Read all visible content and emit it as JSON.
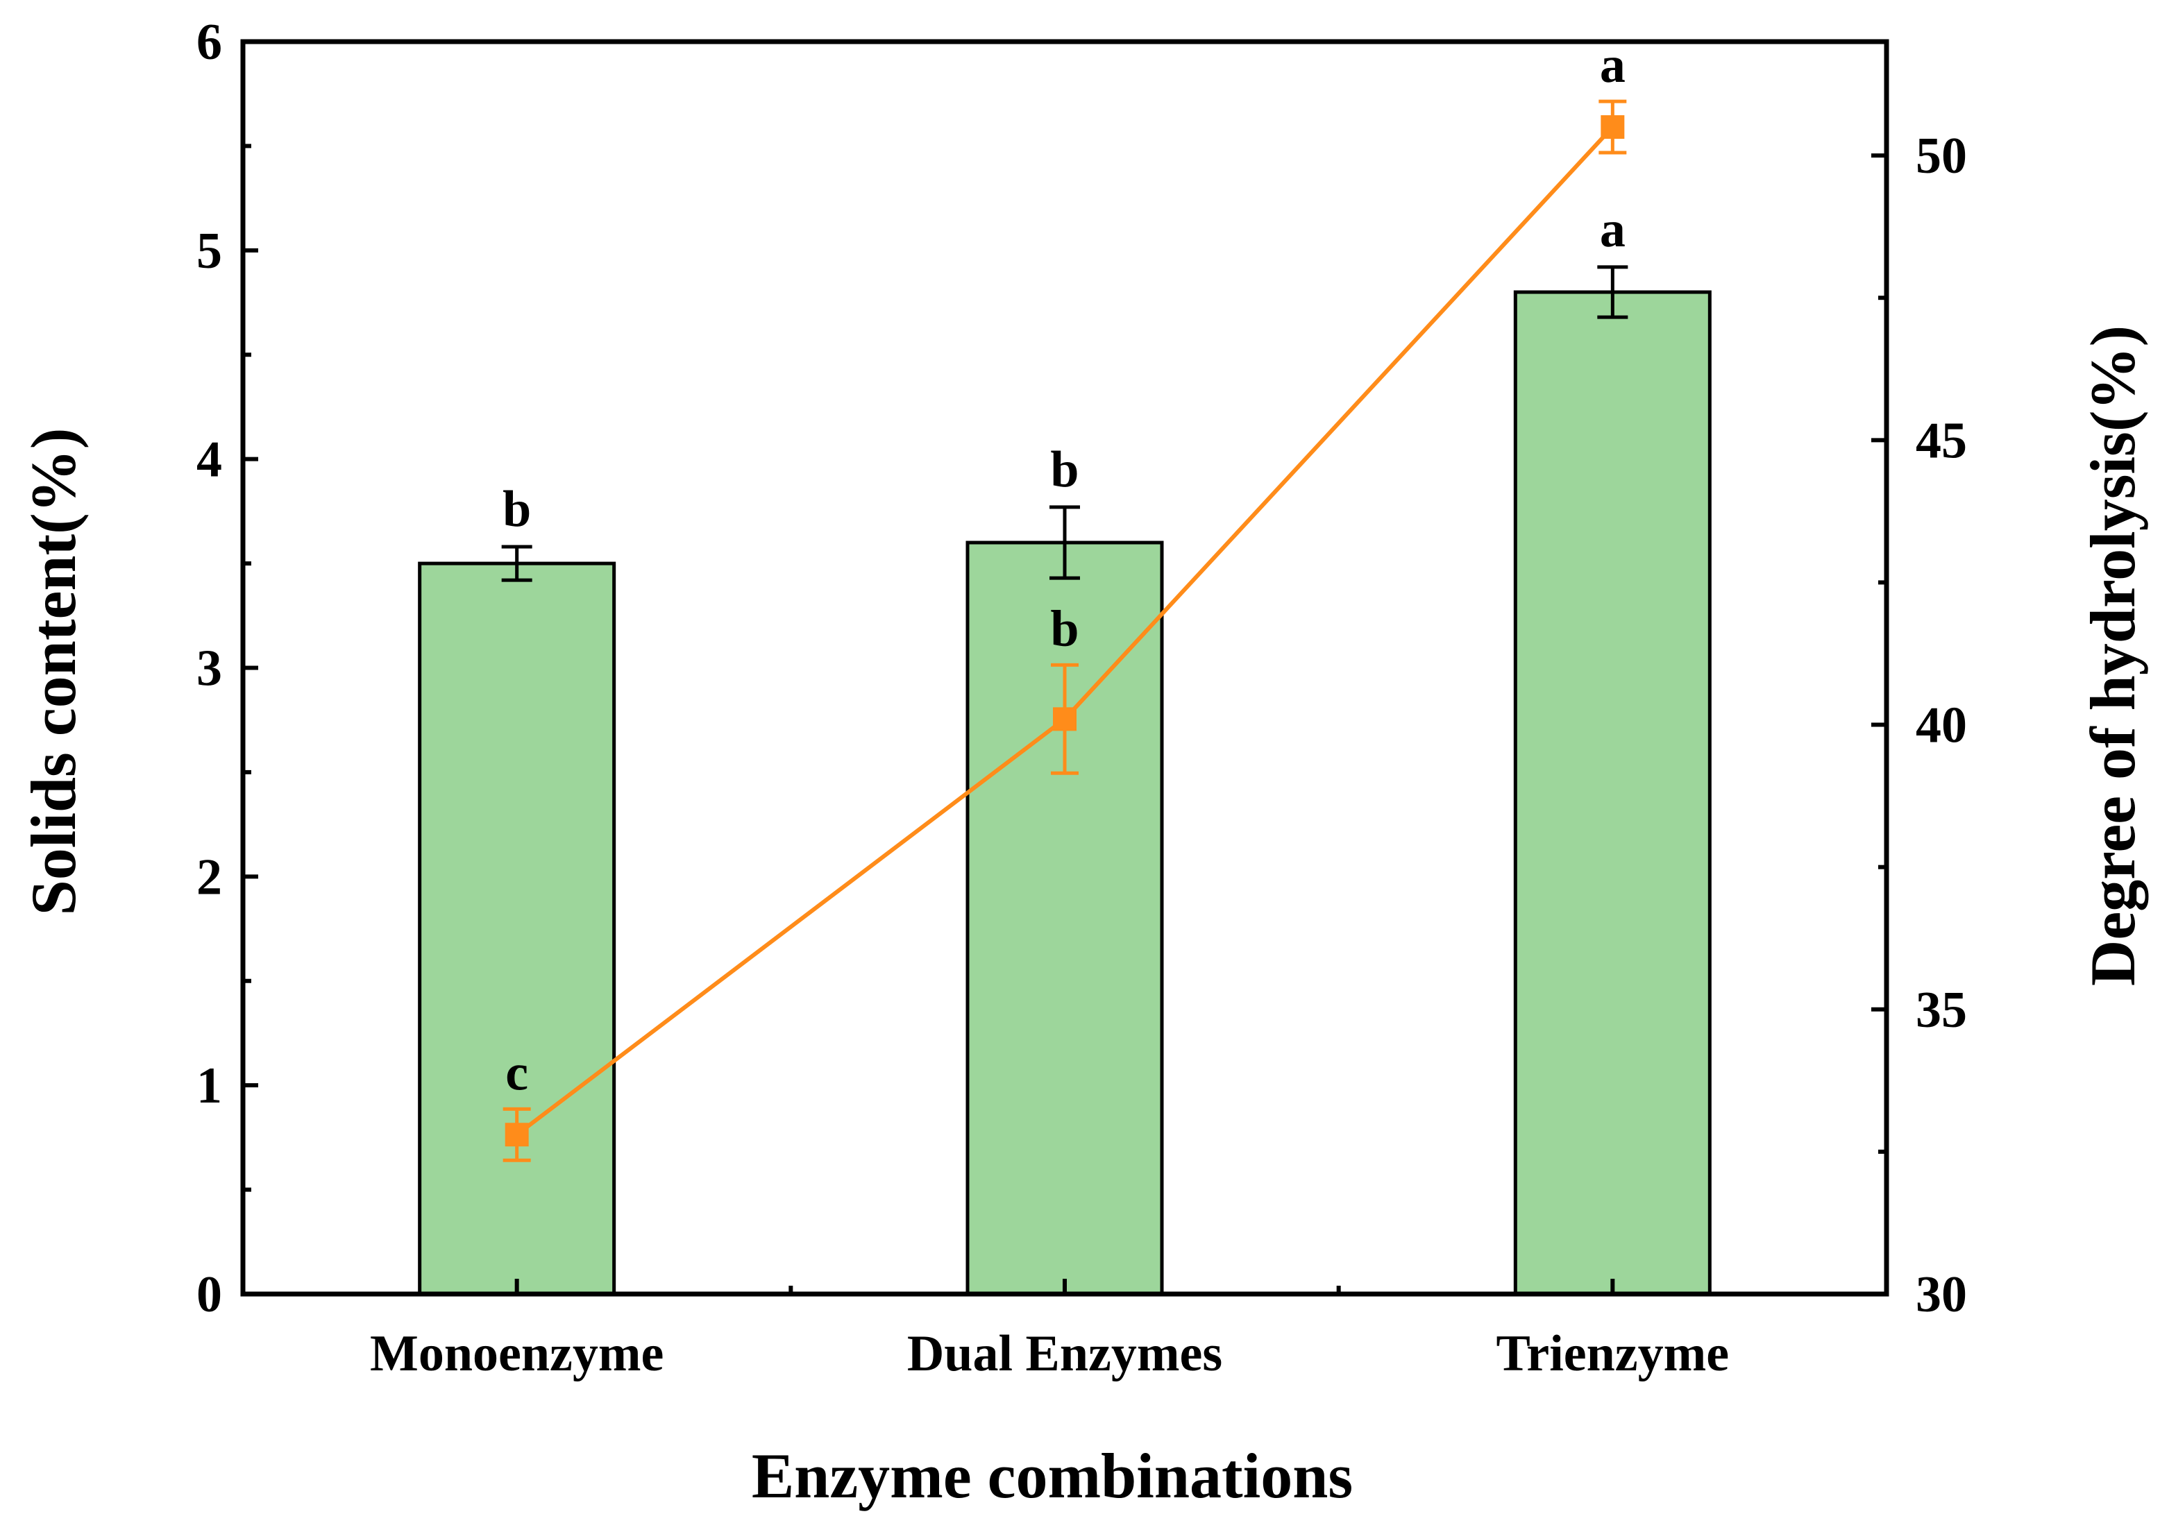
{
  "chart_data": {
    "type": "bar",
    "categories": [
      "Monoenzyme",
      "Dual Enzymes",
      "Trienzyme"
    ],
    "xlabel": "Enzyme combinations",
    "ylabel": "Solids content(%)",
    "y2label": "Degree of hydrolysis(%)",
    "ylim": [
      0,
      6
    ],
    "y2lim": [
      30,
      52
    ],
    "yticks": [
      "0",
      "1",
      "2",
      "3",
      "4",
      "5",
      "6"
    ],
    "y2ticks": [
      "30",
      "35",
      "40",
      "45",
      "50"
    ],
    "grid": false,
    "series": [
      {
        "name": "Solids content(%)",
        "type": "bar",
        "axis": "left",
        "color": "#9dd69b",
        "values": [
          3.5,
          3.6,
          4.8
        ],
        "errors": [
          0.08,
          0.17,
          0.12
        ],
        "labels": [
          "b",
          "b",
          "a"
        ]
      },
      {
        "name": "Degree of hydrolysis(%)",
        "type": "line",
        "axis": "right",
        "color": "#ff8c1a",
        "marker": "square",
        "values": [
          32.8,
          40.1,
          50.5
        ],
        "errors": [
          0.45,
          0.95,
          0.45
        ],
        "labels": [
          "c",
          "b",
          "a"
        ]
      }
    ]
  }
}
